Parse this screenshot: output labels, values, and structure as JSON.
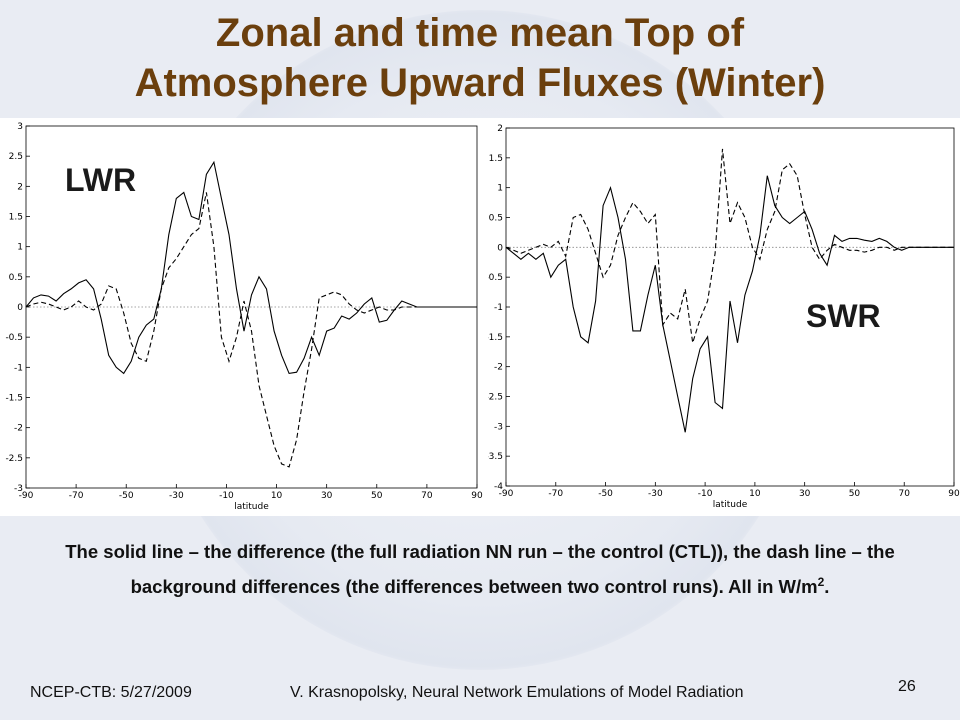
{
  "slide": {
    "title_line1": "Zonal and time mean Top of",
    "title_line2": "Atmosphere Upward Fluxes (Winter)",
    "caption_part1": "The solid line – the difference (the full radiation NN run – the control (CTL)), the dash line – the background differences (the differences between two control runs).  All in W/m",
    "caption_sup": "2",
    "caption_end": ".",
    "footer_left": "NCEP-CTB: 5/27/2009",
    "footer_center": "V. Krasnopolsky, Neural Network Emulations of Model Radiation",
    "page_number": "26"
  },
  "colors": {
    "title": "#6b3f0d",
    "background": "#e9ecf3",
    "line": "#000000"
  },
  "chart_data": [
    {
      "type": "line",
      "label": "LWR",
      "xlabel": "latitude",
      "xlim": [
        -90,
        90
      ],
      "ylim": [
        -3,
        3
      ],
      "xticks": [
        -90,
        -70,
        -50,
        -30,
        -10,
        10,
        30,
        50,
        70,
        90
      ],
      "yticks": [
        3,
        2.5,
        2,
        1.5,
        1,
        0.5,
        0,
        -0.5,
        -1,
        -1.5,
        -2,
        -2.5,
        -3
      ],
      "zero_line": true,
      "series": [
        {
          "style": "solid",
          "x": [
            -90,
            -87,
            -84,
            -81,
            -78,
            -75,
            -72,
            -69,
            -66,
            -63,
            -60,
            -57,
            -54,
            -51,
            -48,
            -45,
            -42,
            -39,
            -36,
            -33,
            -30,
            -27,
            -24,
            -21,
            -18,
            -15,
            -12,
            -9,
            -6,
            -3,
            0,
            3,
            6,
            9,
            12,
            15,
            18,
            21,
            24,
            27,
            30,
            33,
            36,
            39,
            42,
            45,
            48,
            51,
            54,
            57,
            60,
            63,
            66,
            69,
            72,
            75,
            78,
            81,
            84,
            87,
            90
          ],
          "y": [
            0.0,
            0.15,
            0.2,
            0.18,
            0.1,
            0.22,
            0.3,
            0.4,
            0.45,
            0.3,
            -0.2,
            -0.8,
            -1.0,
            -1.1,
            -0.9,
            -0.5,
            -0.3,
            -0.2,
            0.3,
            1.2,
            1.8,
            1.9,
            1.5,
            1.45,
            2.2,
            2.4,
            1.8,
            1.2,
            0.3,
            -0.4,
            0.2,
            0.5,
            0.3,
            -0.4,
            -0.8,
            -1.1,
            -1.08,
            -0.85,
            -0.5,
            -0.8,
            -0.4,
            -0.35,
            -0.15,
            -0.2,
            -0.1,
            0.05,
            0.15,
            -0.25,
            -0.22,
            -0.05,
            0.1,
            0.05,
            0.0,
            0.0,
            0.0,
            0.0,
            0.0,
            0.0,
            0.0,
            0.0,
            0.0
          ]
        },
        {
          "style": "dashed",
          "x": [
            -90,
            -87,
            -84,
            -81,
            -78,
            -75,
            -72,
            -69,
            -66,
            -63,
            -60,
            -57,
            -54,
            -51,
            -48,
            -45,
            -42,
            -39,
            -36,
            -33,
            -30,
            -27,
            -24,
            -21,
            -18,
            -15,
            -12,
            -9,
            -6,
            -3,
            0,
            3,
            6,
            9,
            12,
            15,
            18,
            21,
            24,
            27,
            30,
            33,
            36,
            39,
            42,
            45,
            48,
            51,
            54,
            57,
            60,
            63,
            66,
            69,
            72,
            75,
            78,
            81,
            84,
            87,
            90
          ],
          "y": [
            0.0,
            0.05,
            0.08,
            0.05,
            0.0,
            -0.05,
            0.0,
            0.1,
            0.0,
            -0.05,
            0.05,
            0.35,
            0.3,
            -0.1,
            -0.6,
            -0.85,
            -0.9,
            -0.4,
            0.3,
            0.65,
            0.8,
            1.0,
            1.2,
            1.3,
            1.9,
            1.0,
            -0.5,
            -0.9,
            -0.5,
            0.1,
            -0.4,
            -1.3,
            -1.8,
            -2.3,
            -2.6,
            -2.65,
            -2.2,
            -1.4,
            -0.7,
            0.15,
            0.2,
            0.25,
            0.2,
            0.05,
            -0.05,
            -0.1,
            -0.05,
            0.0,
            -0.05,
            -0.05,
            0.0,
            0.0,
            0.0,
            0.0,
            0.0,
            0.0,
            0.0,
            0.0,
            0.0,
            0.0,
            0.0
          ]
        }
      ]
    },
    {
      "type": "line",
      "label": "SWR",
      "xlabel": "latitude",
      "xlim": [
        -90,
        90
      ],
      "ylim": [
        -4,
        2
      ],
      "xticks": [
        -90,
        -70,
        -50,
        -30,
        -10,
        10,
        30,
        50,
        70,
        90
      ],
      "yticks": [
        2,
        1.5,
        1,
        0.5,
        0,
        -0.5,
        -1,
        -1.5,
        -2,
        -2.5,
        -3,
        -3.5,
        -4
      ],
      "zero_line": true,
      "series": [
        {
          "style": "solid",
          "x": [
            -90,
            -87,
            -84,
            -81,
            -78,
            -75,
            -72,
            -69,
            -66,
            -63,
            -60,
            -57,
            -54,
            -51,
            -48,
            -45,
            -42,
            -39,
            -36,
            -33,
            -30,
            -27,
            -24,
            -21,
            -18,
            -15,
            -12,
            -9,
            -6,
            -3,
            0,
            3,
            6,
            9,
            12,
            15,
            18,
            21,
            24,
            27,
            30,
            33,
            36,
            39,
            42,
            45,
            48,
            51,
            54,
            57,
            60,
            63,
            66,
            69,
            72,
            75,
            78,
            81,
            84,
            87,
            90
          ],
          "y": [
            0.0,
            -0.1,
            -0.2,
            -0.1,
            -0.2,
            -0.1,
            -0.5,
            -0.3,
            -0.2,
            -1.0,
            -1.5,
            -1.6,
            -0.9,
            0.7,
            1.0,
            0.5,
            -0.2,
            -1.4,
            -1.4,
            -0.8,
            -0.3,
            -1.3,
            -1.9,
            -2.5,
            -3.1,
            -2.2,
            -1.7,
            -1.5,
            -2.6,
            -2.7,
            -0.9,
            -1.6,
            -0.8,
            -0.4,
            0.2,
            1.2,
            0.7,
            0.5,
            0.4,
            0.5,
            0.6,
            0.3,
            -0.1,
            -0.3,
            0.2,
            0.1,
            0.15,
            0.15,
            0.12,
            0.1,
            0.15,
            0.1,
            0.0,
            -0.05,
            0.0,
            0.0,
            0.0,
            0.0,
            0.0,
            0.0,
            0.0
          ]
        },
        {
          "style": "dashed",
          "x": [
            -90,
            -87,
            -84,
            -81,
            -78,
            -75,
            -72,
            -69,
            -66,
            -63,
            -60,
            -57,
            -54,
            -51,
            -48,
            -45,
            -42,
            -39,
            -36,
            -33,
            -30,
            -27,
            -24,
            -21,
            -18,
            -15,
            -12,
            -9,
            -6,
            -3,
            0,
            3,
            6,
            9,
            12,
            15,
            18,
            21,
            24,
            27,
            30,
            33,
            36,
            39,
            42,
            45,
            48,
            51,
            54,
            57,
            60,
            63,
            66,
            69,
            72,
            75,
            78,
            81,
            84,
            87,
            90
          ],
          "y": [
            0.0,
            -0.05,
            -0.1,
            -0.05,
            0.0,
            0.05,
            0.0,
            0.1,
            -0.15,
            0.5,
            0.55,
            0.3,
            -0.1,
            -0.5,
            -0.3,
            0.2,
            0.5,
            0.75,
            0.6,
            0.4,
            0.55,
            -1.3,
            -1.1,
            -1.2,
            -0.7,
            -1.6,
            -1.2,
            -0.9,
            -0.1,
            1.65,
            0.4,
            0.75,
            0.5,
            0.0,
            -0.2,
            0.3,
            0.6,
            1.3,
            1.4,
            1.2,
            0.55,
            0.0,
            -0.2,
            -0.05,
            0.05,
            0.0,
            -0.05,
            -0.05,
            -0.08,
            -0.05,
            0.0,
            0.0,
            -0.05,
            0.0,
            0.0,
            0.0,
            0.0,
            0.0,
            0.0,
            0.0,
            0.0
          ]
        }
      ]
    }
  ]
}
